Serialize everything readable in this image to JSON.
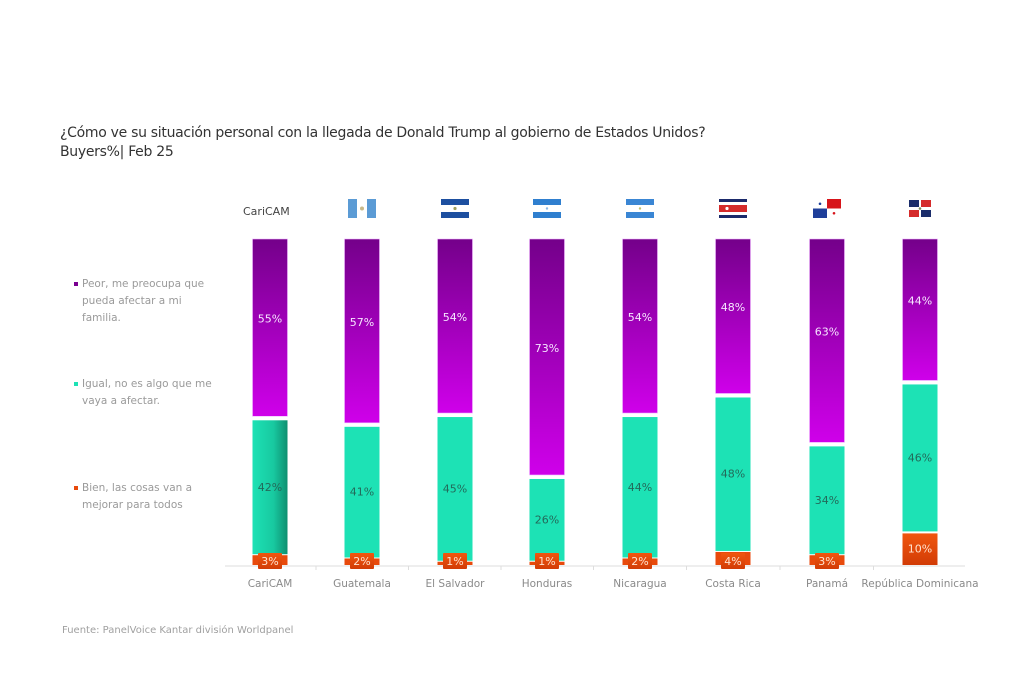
{
  "title": {
    "line1": "¿Cómo ve su situación personal con la llegada de Donald Trump al gobierno de Estados Unidos?",
    "line2": "Buyers%| Feb 25"
  },
  "source": "Fuente: PanelVoice Kantar división Worldpanel",
  "legend": [
    {
      "label": "Peor, me preocupa que pueda afectar a mi familia.",
      "color": "#8e00a8"
    },
    {
      "label": "Igual, no es algo que me vaya a afectar.",
      "color": "#1de2b5"
    },
    {
      "label": "Bien, las cosas van a mejorar para todos",
      "color": "#e84a0c"
    }
  ],
  "header_label": "CariCAM",
  "flags": [
    "guatemala-flag",
    "el-salvador-flag",
    "honduras-flag",
    "nicaragua-flag",
    "costa-rica-flag",
    "panama-flag",
    "dominican-republic-flag"
  ],
  "chart_data": {
    "type": "bar",
    "stacked": true,
    "title": "¿Cómo ve su situación personal con la llegada de Donald Trump al gobierno de Estados Unidos?",
    "subtitle": "Buyers%| Feb 25",
    "xlabel": "",
    "ylabel": "",
    "ylim": [
      0,
      100
    ],
    "grid": false,
    "legend_position": "left",
    "categories": [
      "CariCAM",
      "Guatemala",
      "El Salvador",
      "Honduras",
      "Nicaragua",
      "Costa Rica",
      "Panamá",
      "República Dominicana"
    ],
    "series": [
      {
        "name": "Peor, me preocupa que pueda afectar a mi familia.",
        "color": "#8e00a8",
        "values": [
          55,
          57,
          54,
          73,
          54,
          48,
          63,
          44
        ]
      },
      {
        "name": "Igual, no es algo que me vaya a afectar.",
        "color": "#1de2b5",
        "values": [
          42,
          41,
          45,
          26,
          44,
          48,
          34,
          46
        ]
      },
      {
        "name": "Bien, las cosas van a mejorar para todos",
        "color": "#e84a0c",
        "values": [
          3,
          2,
          1,
          1,
          2,
          4,
          3,
          10
        ]
      }
    ],
    "value_suffix": "%"
  }
}
